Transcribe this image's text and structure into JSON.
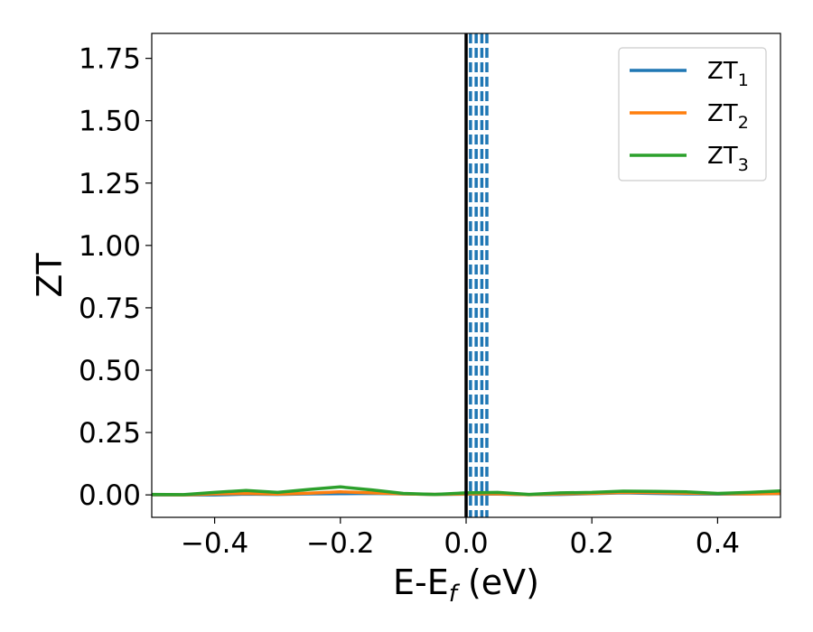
{
  "chart_data": {
    "type": "line",
    "xlabel": "E-E",
    "xlabel_subscript": "f",
    "xlabel_unit": " (eV)",
    "ylabel": "ZT",
    "xlim": [
      -0.5,
      0.5
    ],
    "ylim": [
      -0.09,
      1.85
    ],
    "xticks": [
      -0.4,
      -0.2,
      0.0,
      0.2,
      0.4
    ],
    "xtick_labels": [
      "−0.4",
      "−0.2",
      "0.0",
      "0.2",
      "0.4"
    ],
    "yticks": [
      0.0,
      0.25,
      0.5,
      0.75,
      1.0,
      1.25,
      1.5,
      1.75
    ],
    "ytick_labels": [
      "0.00",
      "0.25",
      "0.50",
      "0.75",
      "1.00",
      "1.25",
      "1.50",
      "1.75"
    ],
    "grid": false,
    "legend_position": "top-right",
    "series": [
      {
        "name": "ZT",
        "name_sub": "1",
        "color": "#1f77b4",
        "x": [
          -0.5,
          -0.45,
          -0.4,
          -0.35,
          -0.3,
          -0.25,
          -0.2,
          -0.15,
          -0.1,
          -0.05,
          0.0,
          0.05,
          0.1,
          0.15,
          0.2,
          0.25,
          0.3,
          0.35,
          0.4,
          0.45,
          0.5
        ],
        "y": [
          0.0,
          0.0,
          0.0,
          0.003,
          0.002,
          0.004,
          0.005,
          0.006,
          0.004,
          0.002,
          0.003,
          0.003,
          0.001,
          0.002,
          0.005,
          0.008,
          0.006,
          0.004,
          0.003,
          0.004,
          0.005
        ]
      },
      {
        "name": "ZT",
        "name_sub": "2",
        "color": "#ff7f0e",
        "x": [
          -0.5,
          -0.45,
          -0.4,
          -0.35,
          -0.3,
          -0.25,
          -0.2,
          -0.15,
          -0.1,
          -0.05,
          0.0,
          0.05,
          0.1,
          0.15,
          0.2,
          0.25,
          0.3,
          0.35,
          0.4,
          0.45,
          0.5
        ],
        "y": [
          0.001,
          0.0,
          0.004,
          0.006,
          0.003,
          0.007,
          0.012,
          0.008,
          0.004,
          0.002,
          0.004,
          0.004,
          0.001,
          0.004,
          0.006,
          0.01,
          0.009,
          0.007,
          0.005,
          0.004,
          0.006
        ]
      },
      {
        "name": "ZT",
        "name_sub": "3",
        "color": "#2ca02c",
        "x": [
          -0.5,
          -0.45,
          -0.4,
          -0.35,
          -0.3,
          -0.25,
          -0.2,
          -0.15,
          -0.1,
          -0.05,
          0.0,
          0.05,
          0.1,
          0.15,
          0.2,
          0.25,
          0.3,
          0.35,
          0.4,
          0.45,
          0.5
        ],
        "y": [
          0.002,
          0.001,
          0.01,
          0.018,
          0.01,
          0.022,
          0.032,
          0.02,
          0.006,
          0.002,
          0.008,
          0.01,
          0.002,
          0.008,
          0.01,
          0.015,
          0.014,
          0.012,
          0.006,
          0.01,
          0.016
        ]
      }
    ],
    "vlines": [
      {
        "x": 0.0,
        "color": "#000000",
        "style": "solid"
      },
      {
        "x": 0.007,
        "color": "#1f77b4",
        "style": "dashed"
      },
      {
        "x": 0.016,
        "color": "#1f77b4",
        "style": "dashed"
      },
      {
        "x": 0.025,
        "color": "#1f77b4",
        "style": "dashed"
      },
      {
        "x": 0.033,
        "color": "#1f77b4",
        "style": "dashed"
      }
    ]
  }
}
